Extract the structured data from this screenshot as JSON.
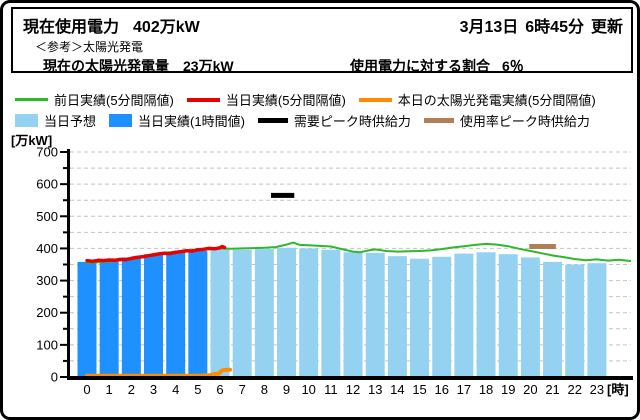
{
  "header": {
    "usage_label": "現在使用電力",
    "usage_value": "402万kW",
    "update_date": "3月13日",
    "update_time": "6時45分",
    "update_suffix": "更新",
    "solar_note": "＜参考＞太陽光発電",
    "solar_label": "現在の太陽光発電量",
    "solar_value": "23万kW",
    "ratio_label": "使用電力に対する割合",
    "ratio_value": "6％"
  },
  "legend": {
    "row1": [
      {
        "label": "前日実績(5分間隔値)",
        "color": "#2DB82D",
        "swatch": "thin-line"
      },
      {
        "label": "当日実績(5分間隔値)",
        "color": "#E60000",
        "swatch": "line"
      },
      {
        "label": "本日の太陽光発電実績(5分間隔値)",
        "color": "#FF8C00",
        "swatch": "line"
      }
    ],
    "row2": [
      {
        "label": "当日予想",
        "color": "#95D1F0",
        "swatch": "box"
      },
      {
        "label": "当日実績(1時間値)",
        "color": "#1E90FF",
        "swatch": "box"
      },
      {
        "label": "需要ピーク時供給力",
        "color": "#000000",
        "swatch": "fat-line"
      },
      {
        "label": "使用率ピーク時供給力",
        "color": "#B17F56",
        "swatch": "fat-line"
      }
    ]
  },
  "chart_data": {
    "type": "bar",
    "unit_label": "[万kW]",
    "x_unit_label": "[時]",
    "grid": "dashed horizontal every 50",
    "y_axis": {
      "min": 0,
      "max": 700,
      "tick_step": 100,
      "minor_step": 50
    },
    "x_ticks": [
      0,
      1,
      2,
      3,
      4,
      5,
      6,
      7,
      8,
      9,
      10,
      11,
      12,
      13,
      14,
      15,
      16,
      17,
      18,
      19,
      20,
      21,
      22,
      23
    ],
    "series": [
      {
        "name": "当日実績(1時間値)",
        "type": "bar",
        "color": "#1E90FF",
        "values": [
          [
            0,
            358
          ],
          [
            1,
            362
          ],
          [
            2,
            372
          ],
          [
            3,
            382
          ],
          [
            4,
            388
          ],
          [
            5,
            392
          ]
        ]
      },
      {
        "name": "当日予想",
        "type": "bar",
        "color": "#95D1F0",
        "values": [
          [
            6,
            398
          ],
          [
            7,
            396
          ],
          [
            8,
            398
          ],
          [
            9,
            402
          ],
          [
            10,
            400
          ],
          [
            11,
            396
          ],
          [
            12,
            388
          ],
          [
            13,
            386
          ],
          [
            14,
            376
          ],
          [
            15,
            368
          ],
          [
            16,
            374
          ],
          [
            17,
            384
          ],
          [
            18,
            388
          ],
          [
            19,
            382
          ],
          [
            20,
            372
          ],
          [
            21,
            358
          ],
          [
            22,
            350
          ],
          [
            23,
            354
          ]
        ]
      },
      {
        "name": "前日実績(5分間隔値)",
        "type": "line",
        "color": "#2DB82D",
        "stroke_width": 2,
        "points": [
          [
            0,
            355
          ],
          [
            0.5,
            357
          ],
          [
            1,
            359
          ],
          [
            1.5,
            363
          ],
          [
            2,
            369
          ],
          [
            2.5,
            375
          ],
          [
            3,
            381
          ],
          [
            3.5,
            386
          ],
          [
            4,
            390
          ],
          [
            4.5,
            393
          ],
          [
            5,
            396
          ],
          [
            5.5,
            398
          ],
          [
            6,
            400
          ],
          [
            6.5,
            399
          ],
          [
            7,
            400
          ],
          [
            7.5,
            401
          ],
          [
            8,
            402
          ],
          [
            8.5,
            404
          ],
          [
            9,
            412
          ],
          [
            9.3,
            418
          ],
          [
            9.6,
            411
          ],
          [
            10,
            410
          ],
          [
            10.5,
            408
          ],
          [
            11,
            406
          ],
          [
            11.5,
            398
          ],
          [
            12,
            390
          ],
          [
            12.3,
            388
          ],
          [
            12.7,
            394
          ],
          [
            13,
            397
          ],
          [
            13.5,
            392
          ],
          [
            14,
            390
          ],
          [
            14.5,
            391
          ],
          [
            15,
            392
          ],
          [
            15.5,
            394
          ],
          [
            16,
            398
          ],
          [
            16.5,
            403
          ],
          [
            17,
            407
          ],
          [
            17.5,
            411
          ],
          [
            18,
            414
          ],
          [
            18.5,
            412
          ],
          [
            19,
            407
          ],
          [
            19.5,
            399
          ],
          [
            20,
            392
          ],
          [
            20.5,
            385
          ],
          [
            21,
            378
          ],
          [
            21.5,
            373
          ],
          [
            22,
            367
          ],
          [
            22.5,
            363
          ],
          [
            23,
            366
          ],
          [
            23.5,
            362
          ],
          [
            24,
            365
          ],
          [
            24.5,
            361
          ]
        ]
      },
      {
        "name": "当日実績(5分間隔値)",
        "type": "line",
        "color": "#E60000",
        "stroke_width": 3.5,
        "points": [
          [
            0,
            362
          ],
          [
            0.25,
            360
          ],
          [
            0.5,
            363
          ],
          [
            0.75,
            362
          ],
          [
            1,
            364
          ],
          [
            1.25,
            363
          ],
          [
            1.5,
            366
          ],
          [
            1.75,
            365
          ],
          [
            2,
            369
          ],
          [
            2.25,
            372
          ],
          [
            2.5,
            374
          ],
          [
            2.75,
            377
          ],
          [
            3,
            380
          ],
          [
            3.25,
            383
          ],
          [
            3.5,
            385
          ],
          [
            3.75,
            384
          ],
          [
            4,
            388
          ],
          [
            4.25,
            390
          ],
          [
            4.5,
            393
          ],
          [
            4.75,
            392
          ],
          [
            5,
            396
          ],
          [
            5.25,
            397
          ],
          [
            5.5,
            400
          ],
          [
            5.75,
            399
          ],
          [
            6,
            402
          ],
          [
            6.1,
            406
          ],
          [
            6.2,
            403
          ]
        ]
      },
      {
        "name": "本日の太陽光発電実績(5分間隔値)",
        "type": "line",
        "color": "#FF8C00",
        "stroke_width": 4,
        "points": [
          [
            0,
            4
          ],
          [
            1,
            4
          ],
          [
            2,
            4
          ],
          [
            3,
            4
          ],
          [
            4,
            4
          ],
          [
            5,
            4
          ],
          [
            5.5,
            5
          ],
          [
            5.8,
            10
          ],
          [
            5.95,
            10
          ],
          [
            6.1,
            21
          ],
          [
            6.45,
            23
          ]
        ]
      },
      {
        "name": "需要ピーク時供給力",
        "type": "peak-bar",
        "color": "#000000",
        "from_hour": 8.3,
        "to_hour": 9.35,
        "value": 565
      },
      {
        "name": "使用率ピーク時供給力",
        "type": "peak-bar",
        "color": "#B17F56",
        "from_hour": 19.95,
        "to_hour": 21.15,
        "value": 406
      }
    ]
  }
}
